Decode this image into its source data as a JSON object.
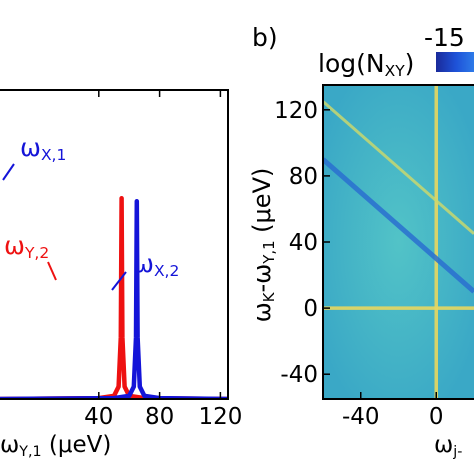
{
  "chart_data": [
    {
      "type": "line",
      "xlabel_main": "ω",
      "xlabel_tail": "Y,1",
      "xlabel_unit": "(μeV)",
      "xlim": [
        -25,
        125
      ],
      "x_ticks": [
        40,
        80,
        120
      ],
      "ylim": [
        0,
        1
      ],
      "series": [
        {
          "name": "ω",
          "name_sub": "Y,2",
          "color": "#ee1111",
          "x": [
            -25,
            40,
            50,
            53,
            54.5,
            55,
            55.5,
            57,
            60,
            70,
            125
          ],
          "y": [
            0.0,
            0.003,
            0.01,
            0.04,
            0.2,
            0.65,
            0.2,
            0.04,
            0.01,
            0.003,
            0.0
          ]
        },
        {
          "name": "ω",
          "name_sub": "X,2",
          "color": "#1414d8",
          "x": [
            -25,
            50,
            60,
            63,
            64.5,
            65,
            65.5,
            67,
            70,
            80,
            125
          ],
          "y": [
            0.0,
            0.003,
            0.01,
            0.04,
            0.2,
            0.64,
            0.2,
            0.04,
            0.01,
            0.003,
            0.0
          ]
        }
      ],
      "annotation_x1_main": "ω",
      "annotation_x1_sub": "X,1"
    },
    {
      "type": "heatmap",
      "panel_label": "b)",
      "colorbar_label_main": "log(N",
      "colorbar_label_sub": "XY",
      "colorbar_label_end": ")",
      "colorbar_tick": "-15",
      "xlabel_main": "ω",
      "xlabel_tail": "j-",
      "ylabel_main": "ω",
      "ylabel_sub1": "K",
      "ylabel_mid": "-ω",
      "ylabel_sub2": "Y,1",
      "ylabel_unit": " (μeV)",
      "xlim": [
        -60,
        20
      ],
      "ylim": [
        -55,
        135
      ],
      "x_ticks": [
        -40,
        0
      ],
      "y_ticks": [
        -40,
        0,
        40,
        80,
        120
      ],
      "features": [
        {
          "kind": "horizontal-line",
          "y": 0,
          "color": "#e8d860"
        },
        {
          "kind": "vertical-line",
          "x": 0,
          "color": "#e8d860"
        },
        {
          "kind": "diagonal-line",
          "slope": -1,
          "intercept": 65,
          "color": "#c8d870"
        },
        {
          "kind": "diagonal-line",
          "slope": -1,
          "intercept": 30,
          "color": "#2a70d0"
        }
      ],
      "background_color": "#40b8c8"
    }
  ]
}
